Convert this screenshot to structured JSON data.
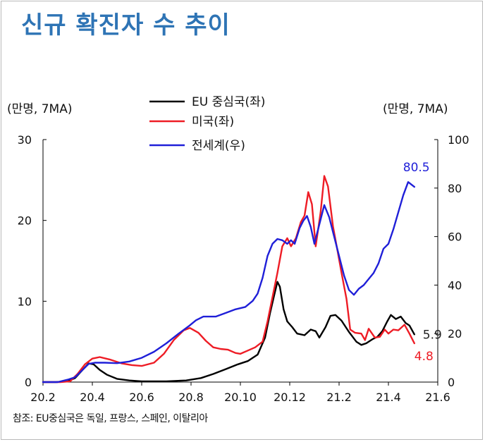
{
  "title": "신규 확진자 수 추이",
  "source_note": "참조: EU중심국은 독일, 프랑스, 스페인, 이탈리아",
  "chart_data": {
    "type": "line",
    "y_left_label": "(만명, 7MA)",
    "y_right_label": "(만명, 7MA)",
    "y_left_range": [
      0,
      30
    ],
    "y_left_ticks": [
      "0",
      "10",
      "20",
      "30"
    ],
    "y_right_range": [
      0,
      100
    ],
    "y_right_ticks": [
      "0",
      "20",
      "40",
      "60",
      "80",
      "100"
    ],
    "x_range": [
      0,
      16
    ],
    "x_ticks": [
      {
        "x": 0,
        "label": "20.2"
      },
      {
        "x": 2,
        "label": "20.4"
      },
      {
        "x": 4,
        "label": "20.6"
      },
      {
        "x": 6,
        "label": "20.8"
      },
      {
        "x": 8,
        "label": "20.10"
      },
      {
        "x": 10,
        "label": "20.12"
      },
      {
        "x": 12,
        "label": "21.2"
      },
      {
        "x": 14,
        "label": "21.4"
      },
      {
        "x": 16,
        "label": "21.6"
      }
    ],
    "series": [
      {
        "name": "EU 중심국(좌)",
        "axis": "left",
        "color": "#000000",
        "end_label": "5.9",
        "points": [
          [
            0,
            0
          ],
          [
            0.5,
            0
          ],
          [
            1,
            0.1
          ],
          [
            1.3,
            0.5
          ],
          [
            1.6,
            1.5
          ],
          [
            1.85,
            2.3
          ],
          [
            2.05,
            2.2
          ],
          [
            2.3,
            1.5
          ],
          [
            2.6,
            0.9
          ],
          [
            3,
            0.4
          ],
          [
            3.5,
            0.2
          ],
          [
            4,
            0.1
          ],
          [
            5,
            0.1
          ],
          [
            5.8,
            0.2
          ],
          [
            6.4,
            0.5
          ],
          [
            6.9,
            1.0
          ],
          [
            7.4,
            1.6
          ],
          [
            7.9,
            2.2
          ],
          [
            8.3,
            2.6
          ],
          [
            8.7,
            3.4
          ],
          [
            9.0,
            5.5
          ],
          [
            9.2,
            8.5
          ],
          [
            9.35,
            10.5
          ],
          [
            9.5,
            12.4
          ],
          [
            9.6,
            11.8
          ],
          [
            9.75,
            9.0
          ],
          [
            9.9,
            7.5
          ],
          [
            10.1,
            6.8
          ],
          [
            10.3,
            6.0
          ],
          [
            10.6,
            5.8
          ],
          [
            10.85,
            6.5
          ],
          [
            11.05,
            6.3
          ],
          [
            11.2,
            5.5
          ],
          [
            11.45,
            6.8
          ],
          [
            11.65,
            8.2
          ],
          [
            11.85,
            8.3
          ],
          [
            12.1,
            7.6
          ],
          [
            12.4,
            6.2
          ],
          [
            12.7,
            5.0
          ],
          [
            12.9,
            4.6
          ],
          [
            13.1,
            4.8
          ],
          [
            13.35,
            5.3
          ],
          [
            13.55,
            5.6
          ],
          [
            13.75,
            6.3
          ],
          [
            13.95,
            7.5
          ],
          [
            14.1,
            8.3
          ],
          [
            14.3,
            7.8
          ],
          [
            14.5,
            8.1
          ],
          [
            14.7,
            7.3
          ],
          [
            14.85,
            7.0
          ],
          [
            15.05,
            5.9
          ]
        ]
      },
      {
        "name": "미국(좌)",
        "axis": "left",
        "color": "#ee1c25",
        "end_label": "4.8",
        "points": [
          [
            0,
            0
          ],
          [
            0.7,
            0
          ],
          [
            1.1,
            0.1
          ],
          [
            1.4,
            1.0
          ],
          [
            1.7,
            2.2
          ],
          [
            2.0,
            2.9
          ],
          [
            2.3,
            3.1
          ],
          [
            2.7,
            2.8
          ],
          [
            3.2,
            2.3
          ],
          [
            3.6,
            2.1
          ],
          [
            4.0,
            2.0
          ],
          [
            4.5,
            2.4
          ],
          [
            4.9,
            3.5
          ],
          [
            5.3,
            5.2
          ],
          [
            5.7,
            6.4
          ],
          [
            5.95,
            6.7
          ],
          [
            6.3,
            6.1
          ],
          [
            6.6,
            5.1
          ],
          [
            6.9,
            4.3
          ],
          [
            7.2,
            4.1
          ],
          [
            7.5,
            4.0
          ],
          [
            7.8,
            3.6
          ],
          [
            8.0,
            3.5
          ],
          [
            8.3,
            3.9
          ],
          [
            8.6,
            4.3
          ],
          [
            8.9,
            5.0
          ],
          [
            9.1,
            7.5
          ],
          [
            9.3,
            10.5
          ],
          [
            9.5,
            13.5
          ],
          [
            9.7,
            16.8
          ],
          [
            9.9,
            17.8
          ],
          [
            10.05,
            16.8
          ],
          [
            10.25,
            17.8
          ],
          [
            10.45,
            19.8
          ],
          [
            10.6,
            20.6
          ],
          [
            10.75,
            23.5
          ],
          [
            10.9,
            22.0
          ],
          [
            11.05,
            16.8
          ],
          [
            11.25,
            21.0
          ],
          [
            11.4,
            25.5
          ],
          [
            11.55,
            24.2
          ],
          [
            11.75,
            19.3
          ],
          [
            11.95,
            16.0
          ],
          [
            12.1,
            13.5
          ],
          [
            12.3,
            10.3
          ],
          [
            12.45,
            6.5
          ],
          [
            12.65,
            6.1
          ],
          [
            12.9,
            6.0
          ],
          [
            13.05,
            5.2
          ],
          [
            13.2,
            6.6
          ],
          [
            13.45,
            5.5
          ],
          [
            13.65,
            5.6
          ],
          [
            13.85,
            6.5
          ],
          [
            14.0,
            6.0
          ],
          [
            14.2,
            6.5
          ],
          [
            14.4,
            6.4
          ],
          [
            14.65,
            7.1
          ],
          [
            14.85,
            6.0
          ],
          [
            15.05,
            4.8
          ]
        ]
      },
      {
        "name": "전세계(우)",
        "axis": "right",
        "color": "#1f1fd8",
        "end_label": "80.5",
        "points": [
          [
            0,
            0
          ],
          [
            0.6,
            0
          ],
          [
            1.0,
            1.0
          ],
          [
            1.3,
            2.0
          ],
          [
            1.6,
            5.0
          ],
          [
            1.85,
            7.5
          ],
          [
            2.1,
            8.0
          ],
          [
            2.5,
            8.0
          ],
          [
            3.0,
            7.8
          ],
          [
            3.5,
            8.5
          ],
          [
            4.0,
            10.0
          ],
          [
            4.5,
            12.5
          ],
          [
            5.0,
            16.0
          ],
          [
            5.5,
            20.0
          ],
          [
            5.9,
            23.0
          ],
          [
            6.2,
            25.5
          ],
          [
            6.5,
            27.0
          ],
          [
            7.0,
            27.0
          ],
          [
            7.4,
            28.5
          ],
          [
            7.8,
            30.0
          ],
          [
            8.2,
            31.0
          ],
          [
            8.5,
            33.5
          ],
          [
            8.7,
            36.5
          ],
          [
            8.9,
            43.0
          ],
          [
            9.1,
            52.0
          ],
          [
            9.3,
            57.0
          ],
          [
            9.5,
            59.0
          ],
          [
            9.7,
            58.5
          ],
          [
            9.9,
            57.0
          ],
          [
            10.05,
            58.5
          ],
          [
            10.2,
            57.0
          ],
          [
            10.4,
            63.5
          ],
          [
            10.55,
            66.5
          ],
          [
            10.7,
            68.5
          ],
          [
            10.85,
            64.0
          ],
          [
            11.0,
            57.0
          ],
          [
            11.2,
            65.0
          ],
          [
            11.4,
            73.0
          ],
          [
            11.6,
            68.0
          ],
          [
            11.8,
            60.0
          ],
          [
            12.0,
            52.0
          ],
          [
            12.2,
            44.0
          ],
          [
            12.4,
            38.0
          ],
          [
            12.6,
            36.0
          ],
          [
            12.8,
            38.5
          ],
          [
            13.0,
            40.0
          ],
          [
            13.2,
            42.5
          ],
          [
            13.4,
            45.0
          ],
          [
            13.6,
            49.0
          ],
          [
            13.8,
            55.0
          ],
          [
            14.0,
            57.0
          ],
          [
            14.2,
            63.0
          ],
          [
            14.4,
            70.0
          ],
          [
            14.6,
            77.0
          ],
          [
            14.8,
            82.5
          ],
          [
            15.05,
            80.5
          ]
        ]
      }
    ]
  }
}
